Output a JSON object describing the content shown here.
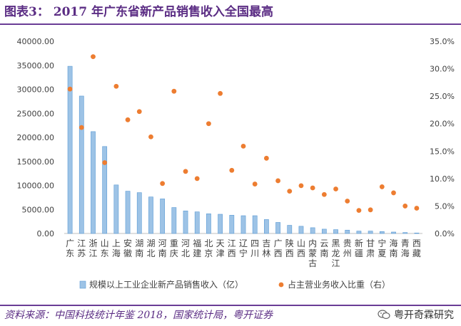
{
  "header": {
    "label": "图表3：",
    "title": "2017 年广东省新产品销售收入全国最高"
  },
  "footer": {
    "source": "资料来源：中国科技统计年鉴 2018，国家统计局，粤开证券",
    "brand": "粤开奇霖研究",
    "brand_icon": "wechat-icon"
  },
  "chart_data": {
    "type": "bar",
    "categories": [
      "广东",
      "江苏",
      "浙江",
      "山东",
      "上海",
      "安徽",
      "湖南",
      "湖北",
      "河南",
      "重庆",
      "河北",
      "福建",
      "北京",
      "天津",
      "江西",
      "辽宁",
      "四川",
      "吉林",
      "广西",
      "陕西",
      "山西",
      "内蒙古",
      "云南",
      "黑龙江",
      "贵州",
      "新疆",
      "甘肃",
      "宁夏",
      "海南",
      "青海",
      "西藏"
    ],
    "category_lines": [
      [
        "广",
        "东"
      ],
      [
        "江",
        "苏"
      ],
      [
        "浙",
        "江"
      ],
      [
        "山",
        "东"
      ],
      [
        "上",
        "海"
      ],
      [
        "安",
        "徽"
      ],
      [
        "湖",
        "南"
      ],
      [
        "湖",
        "北"
      ],
      [
        "河",
        "南"
      ],
      [
        "重",
        "庆"
      ],
      [
        "河",
        "北"
      ],
      [
        "福",
        "建"
      ],
      [
        "北",
        "京"
      ],
      [
        "天",
        "津"
      ],
      [
        "江",
        "西"
      ],
      [
        "辽",
        "宁"
      ],
      [
        "四",
        "川"
      ],
      [
        "吉",
        "林"
      ],
      [
        "广",
        "西"
      ],
      [
        "陕",
        "西"
      ],
      [
        "山",
        "西"
      ],
      [
        "内",
        "蒙",
        "古"
      ],
      [
        "云",
        "南"
      ],
      [
        "黑",
        "龙",
        "江"
      ],
      [
        "贵",
        "州"
      ],
      [
        "新",
        "疆"
      ],
      [
        "甘",
        "肃"
      ],
      [
        "宁",
        "夏"
      ],
      [
        "海",
        "南"
      ],
      [
        "青",
        "海"
      ],
      [
        "西",
        "藏"
      ]
    ],
    "series": [
      {
        "name": "规模以上工业企业新产品销售收入（亿）",
        "type": "bar",
        "axis": "left",
        "color": "#9dc3e6",
        "values": [
          34800,
          28600,
          21200,
          18100,
          10100,
          8800,
          8500,
          7600,
          7200,
          5400,
          4700,
          4500,
          4100,
          4000,
          3800,
          3700,
          3700,
          2900,
          2300,
          1700,
          1500,
          1200,
          900,
          800,
          700,
          500,
          500,
          400,
          300,
          200,
          100
        ]
      },
      {
        "name": "占主营业务收入比重（右）",
        "type": "scatter",
        "axis": "right",
        "color": "#ed7d31",
        "values": [
          26.3,
          19.3,
          32.2,
          12.9,
          26.8,
          20.7,
          22.2,
          17.6,
          9.1,
          25.9,
          11.3,
          10.0,
          20.0,
          25.5,
          11.5,
          15.9,
          9.0,
          13.7,
          9.6,
          7.7,
          8.7,
          8.3,
          7.1,
          8.1,
          5.9,
          4.2,
          4.3,
          8.5,
          7.4,
          5.0,
          4.6
        ]
      }
    ],
    "left_axis": {
      "min": 0,
      "max": 40000,
      "step": 5000,
      "tick_labels": [
        "0.00",
        "5000.00",
        "10000.00",
        "15000.00",
        "20000.00",
        "25000.00",
        "30000.00",
        "35000.00",
        "40000.00"
      ]
    },
    "right_axis": {
      "min": 0,
      "max": 35,
      "step": 5,
      "tick_labels": [
        "0.0%",
        "5.0%",
        "10.0%",
        "15.0%",
        "20.0%",
        "25.0%",
        "30.0%",
        "35.0%"
      ]
    },
    "grid": false,
    "legend_position": "bottom"
  }
}
